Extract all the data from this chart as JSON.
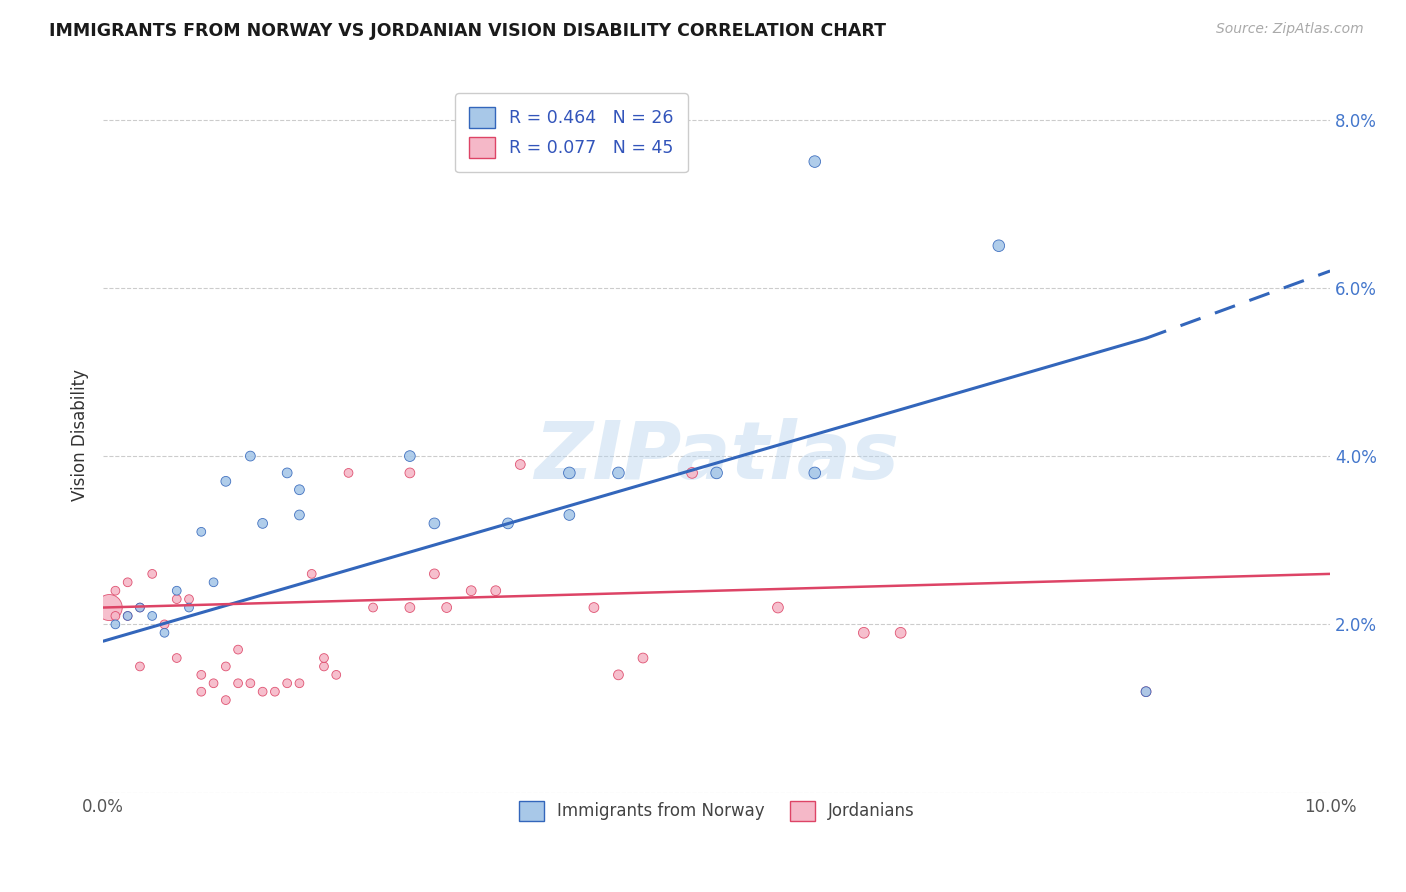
{
  "title": "IMMIGRANTS FROM NORWAY VS JORDANIAN VISION DISABILITY CORRELATION CHART",
  "source": "Source: ZipAtlas.com",
  "ylabel": "Vision Disability",
  "xlim": [
    0.0,
    0.1
  ],
  "ylim": [
    0.0,
    0.085
  ],
  "yticks": [
    0.0,
    0.02,
    0.04,
    0.06,
    0.08
  ],
  "ytick_labels": [
    "",
    "2.0%",
    "4.0%",
    "6.0%",
    "8.0%"
  ],
  "xticks": [
    0.0,
    0.025,
    0.05,
    0.075,
    0.1
  ],
  "xtick_labels": [
    "0.0%",
    "",
    "",
    "",
    "10.0%"
  ],
  "norway_R": 0.464,
  "norway_N": 26,
  "jordan_R": 0.077,
  "jordan_N": 45,
  "norway_color": "#a8c8e8",
  "jordan_color": "#f5b8c8",
  "norway_line_color": "#3366bb",
  "jordan_line_color": "#dd4466",
  "legend_norway_label": "Immigrants from Norway",
  "legend_jordan_label": "Jordanians",
  "watermark": "ZIPatlas",
  "norway_line_x0": 0.0,
  "norway_line_y0": 0.018,
  "norway_line_x1": 0.085,
  "norway_line_y1": 0.054,
  "norway_line_xdash": 0.1,
  "norway_line_ydash": 0.062,
  "jordan_line_x0": 0.0,
  "jordan_line_y0": 0.022,
  "jordan_line_x1": 0.1,
  "jordan_line_y1": 0.026,
  "norway_x": [
    0.001,
    0.002,
    0.003,
    0.004,
    0.005,
    0.006,
    0.007,
    0.008,
    0.009,
    0.01,
    0.012,
    0.013,
    0.015,
    0.016,
    0.016,
    0.025,
    0.027,
    0.033,
    0.038,
    0.038,
    0.042,
    0.05,
    0.058,
    0.058,
    0.073,
    0.085
  ],
  "norway_y": [
    0.02,
    0.021,
    0.022,
    0.021,
    0.019,
    0.024,
    0.022,
    0.031,
    0.025,
    0.037,
    0.04,
    0.032,
    0.038,
    0.033,
    0.036,
    0.04,
    0.032,
    0.032,
    0.033,
    0.038,
    0.038,
    0.038,
    0.075,
    0.038,
    0.065,
    0.012
  ],
  "jordan_x": [
    0.0005,
    0.001,
    0.001,
    0.002,
    0.002,
    0.003,
    0.003,
    0.004,
    0.005,
    0.006,
    0.006,
    0.007,
    0.008,
    0.008,
    0.009,
    0.01,
    0.01,
    0.011,
    0.011,
    0.012,
    0.013,
    0.014,
    0.015,
    0.016,
    0.017,
    0.018,
    0.018,
    0.019,
    0.02,
    0.022,
    0.025,
    0.025,
    0.027,
    0.028,
    0.03,
    0.032,
    0.034,
    0.04,
    0.042,
    0.044,
    0.048,
    0.055,
    0.062,
    0.065,
    0.085
  ],
  "jordan_y": [
    0.022,
    0.024,
    0.021,
    0.021,
    0.025,
    0.022,
    0.015,
    0.026,
    0.02,
    0.023,
    0.016,
    0.023,
    0.014,
    0.012,
    0.013,
    0.011,
    0.015,
    0.013,
    0.017,
    0.013,
    0.012,
    0.012,
    0.013,
    0.013,
    0.026,
    0.015,
    0.016,
    0.014,
    0.038,
    0.022,
    0.038,
    0.022,
    0.026,
    0.022,
    0.024,
    0.024,
    0.039,
    0.022,
    0.014,
    0.016,
    0.038,
    0.022,
    0.019,
    0.019,
    0.012
  ],
  "norway_sizes": [
    40,
    40,
    40,
    40,
    40,
    40,
    40,
    40,
    40,
    50,
    50,
    50,
    50,
    50,
    50,
    60,
    60,
    60,
    60,
    70,
    70,
    70,
    70,
    70,
    70,
    50
  ],
  "jordan_sizes": [
    350,
    40,
    40,
    40,
    40,
    40,
    40,
    40,
    40,
    40,
    40,
    40,
    40,
    40,
    40,
    40,
    40,
    40,
    40,
    40,
    40,
    40,
    40,
    40,
    40,
    40,
    40,
    40,
    40,
    40,
    50,
    50,
    50,
    50,
    50,
    50,
    50,
    50,
    50,
    50,
    60,
    60,
    60,
    60,
    50
  ],
  "background_color": "#ffffff",
  "grid_color": "#cccccc"
}
